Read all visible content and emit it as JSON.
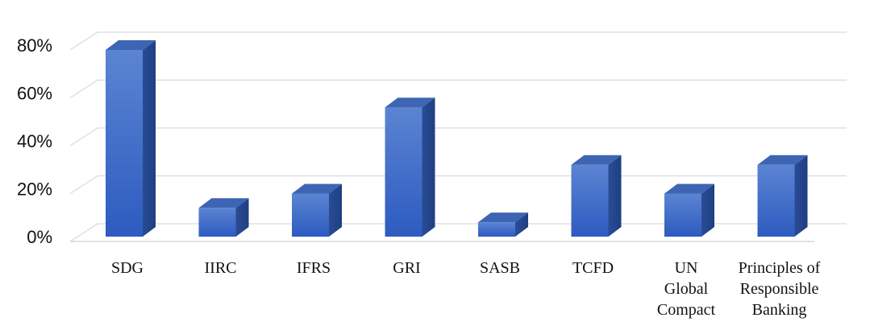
{
  "chart_data": {
    "type": "bar",
    "title": "",
    "xlabel": "",
    "ylabel": "",
    "ylim": [
      0,
      80
    ],
    "yticks": [
      0,
      20,
      40,
      60,
      80
    ],
    "ytick_labels": [
      "0%",
      "20%",
      "40%",
      "60%",
      "80%"
    ],
    "grid": true,
    "style": "3d-column",
    "bar_color": "#4472C4",
    "categories": [
      "SDG",
      "IIRC",
      "IFRS",
      "GRI",
      "SASB",
      "TCFD",
      "UN Global Compact",
      "Principles of Responsible Banking"
    ],
    "category_label_lines": [
      [
        "SDG"
      ],
      [
        "IIRC"
      ],
      [
        "IFRS"
      ],
      [
        "GRI"
      ],
      [
        "SASB"
      ],
      [
        "TCFD"
      ],
      [
        "UN",
        "Global",
        "Compact"
      ],
      [
        "Principles of",
        "Responsible",
        "Banking"
      ]
    ],
    "values": [
      78,
      12,
      18,
      54,
      6,
      30,
      18,
      30
    ]
  }
}
